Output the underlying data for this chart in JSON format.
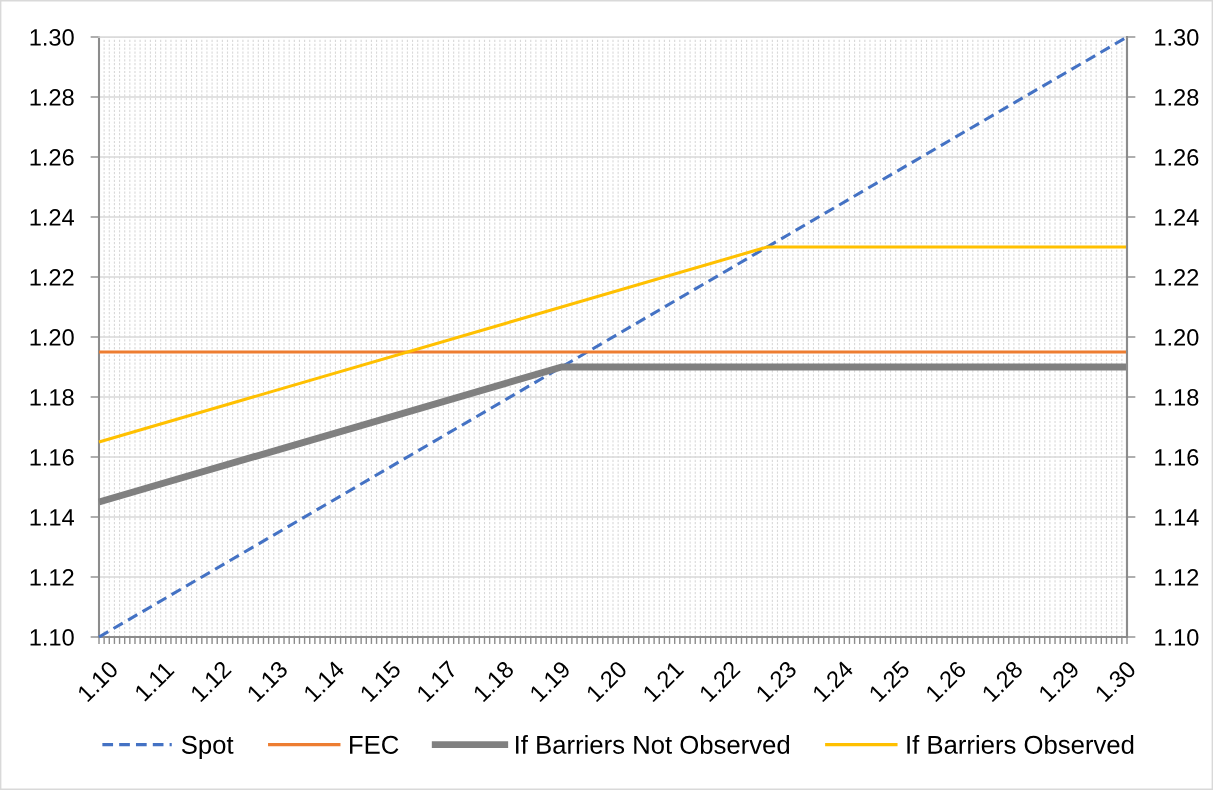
{
  "chart_data": {
    "type": "line",
    "xlim": [
      1.1,
      1.3
    ],
    "xticks": [
      {
        "value": 1.1,
        "label": "1.10"
      },
      {
        "value": 1.101,
        "label": null
      },
      {
        "value": 1.102,
        "label": null
      },
      {
        "value": 1.103,
        "label": null
      },
      {
        "value": 1.104,
        "label": null
      },
      {
        "value": 1.105,
        "label": null
      },
      {
        "value": 1.106,
        "label": null
      },
      {
        "value": 1.107,
        "label": null
      },
      {
        "value": 1.108,
        "label": null
      },
      {
        "value": 1.109,
        "label": null
      },
      {
        "value": 1.11,
        "label": null
      },
      {
        "value": 1.111,
        "label": "1.11"
      },
      {
        "value": 1.112,
        "label": null
      },
      {
        "value": 1.113,
        "label": null
      },
      {
        "value": 1.114,
        "label": null
      },
      {
        "value": 1.115,
        "label": null
      },
      {
        "value": 1.116,
        "label": null
      },
      {
        "value": 1.117,
        "label": null
      },
      {
        "value": 1.118,
        "label": null
      },
      {
        "value": 1.119,
        "label": null
      },
      {
        "value": 1.12,
        "label": null
      },
      {
        "value": 1.121,
        "label": null
      },
      {
        "value": 1.122,
        "label": "1.12"
      },
      {
        "value": 1.123,
        "label": null
      },
      {
        "value": 1.124,
        "label": null
      },
      {
        "value": 1.125,
        "label": null
      },
      {
        "value": 1.126,
        "label": null
      },
      {
        "value": 1.127,
        "label": null
      },
      {
        "value": 1.128,
        "label": null
      },
      {
        "value": 1.129,
        "label": null
      },
      {
        "value": 1.13,
        "label": null
      },
      {
        "value": 1.131,
        "label": null
      },
      {
        "value": 1.132,
        "label": null
      },
      {
        "value": 1.133,
        "label": "1.13"
      },
      {
        "value": 1.134,
        "label": null
      },
      {
        "value": 1.135,
        "label": null
      },
      {
        "value": 1.136,
        "label": null
      },
      {
        "value": 1.137,
        "label": null
      },
      {
        "value": 1.138,
        "label": null
      },
      {
        "value": 1.139,
        "label": null
      },
      {
        "value": 1.14,
        "label": null
      },
      {
        "value": 1.141,
        "label": null
      },
      {
        "value": 1.142,
        "label": null
      },
      {
        "value": 1.143,
        "label": null
      },
      {
        "value": 1.144,
        "label": "1.14"
      },
      {
        "value": 1.145,
        "label": null
      },
      {
        "value": 1.146,
        "label": null
      },
      {
        "value": 1.147,
        "label": null
      },
      {
        "value": 1.148,
        "label": null
      },
      {
        "value": 1.149,
        "label": null
      },
      {
        "value": 1.15,
        "label": null
      },
      {
        "value": 1.151,
        "label": null
      },
      {
        "value": 1.152,
        "label": null
      },
      {
        "value": 1.153,
        "label": null
      },
      {
        "value": 1.154,
        "label": null
      },
      {
        "value": 1.155,
        "label": "1.15"
      },
      {
        "value": 1.156,
        "label": null
      },
      {
        "value": 1.157,
        "label": null
      },
      {
        "value": 1.158,
        "label": null
      },
      {
        "value": 1.159,
        "label": null
      },
      {
        "value": 1.16,
        "label": null
      },
      {
        "value": 1.161,
        "label": null
      },
      {
        "value": 1.162,
        "label": null
      },
      {
        "value": 1.163,
        "label": null
      },
      {
        "value": 1.164,
        "label": null
      },
      {
        "value": 1.165,
        "label": null
      },
      {
        "value": 1.166,
        "label": "1.17"
      },
      {
        "value": 1.167,
        "label": null
      },
      {
        "value": 1.168,
        "label": null
      },
      {
        "value": 1.169,
        "label": null
      },
      {
        "value": 1.17,
        "label": null
      },
      {
        "value": 1.171,
        "label": null
      },
      {
        "value": 1.172,
        "label": null
      },
      {
        "value": 1.173,
        "label": null
      },
      {
        "value": 1.174,
        "label": null
      },
      {
        "value": 1.175,
        "label": null
      },
      {
        "value": 1.176,
        "label": null
      },
      {
        "value": 1.177,
        "label": "1.18"
      },
      {
        "value": 1.178,
        "label": null
      },
      {
        "value": 1.179,
        "label": null
      },
      {
        "value": 1.18,
        "label": null
      },
      {
        "value": 1.181,
        "label": null
      },
      {
        "value": 1.182,
        "label": null
      },
      {
        "value": 1.183,
        "label": null
      },
      {
        "value": 1.184,
        "label": null
      },
      {
        "value": 1.185,
        "label": null
      },
      {
        "value": 1.186,
        "label": null
      },
      {
        "value": 1.187,
        "label": null
      },
      {
        "value": 1.188,
        "label": "1.19"
      },
      {
        "value": 1.189,
        "label": null
      },
      {
        "value": 1.19,
        "label": null
      },
      {
        "value": 1.191,
        "label": null
      },
      {
        "value": 1.192,
        "label": null
      },
      {
        "value": 1.193,
        "label": null
      },
      {
        "value": 1.194,
        "label": null
      },
      {
        "value": 1.195,
        "label": null
      },
      {
        "value": 1.196,
        "label": null
      },
      {
        "value": 1.197,
        "label": null
      },
      {
        "value": 1.198,
        "label": null
      },
      {
        "value": 1.199,
        "label": "1.20"
      },
      {
        "value": 1.2,
        "label": null
      },
      {
        "value": 1.201,
        "label": null
      },
      {
        "value": 1.202,
        "label": null
      },
      {
        "value": 1.203,
        "label": null
      },
      {
        "value": 1.204,
        "label": null
      },
      {
        "value": 1.205,
        "label": null
      },
      {
        "value": 1.206,
        "label": null
      },
      {
        "value": 1.207,
        "label": null
      },
      {
        "value": 1.208,
        "label": null
      },
      {
        "value": 1.209,
        "label": null
      },
      {
        "value": 1.21,
        "label": "1.21"
      },
      {
        "value": 1.211,
        "label": null
      },
      {
        "value": 1.212,
        "label": null
      },
      {
        "value": 1.213,
        "label": null
      },
      {
        "value": 1.214,
        "label": null
      },
      {
        "value": 1.215,
        "label": null
      },
      {
        "value": 1.216,
        "label": null
      },
      {
        "value": 1.217,
        "label": null
      },
      {
        "value": 1.218,
        "label": null
      },
      {
        "value": 1.219,
        "label": null
      },
      {
        "value": 1.22,
        "label": null
      },
      {
        "value": 1.221,
        "label": "1.22"
      },
      {
        "value": 1.222,
        "label": null
      },
      {
        "value": 1.223,
        "label": null
      },
      {
        "value": 1.224,
        "label": null
      },
      {
        "value": 1.225,
        "label": null
      },
      {
        "value": 1.226,
        "label": null
      },
      {
        "value": 1.227,
        "label": null
      },
      {
        "value": 1.228,
        "label": null
      },
      {
        "value": 1.229,
        "label": null
      },
      {
        "value": 1.23,
        "label": null
      },
      {
        "value": 1.231,
        "label": null
      },
      {
        "value": 1.232,
        "label": "1.23"
      },
      {
        "value": 1.233,
        "label": null
      },
      {
        "value": 1.234,
        "label": null
      },
      {
        "value": 1.235,
        "label": null
      },
      {
        "value": 1.236,
        "label": null
      },
      {
        "value": 1.237,
        "label": null
      },
      {
        "value": 1.238,
        "label": null
      },
      {
        "value": 1.239,
        "label": null
      },
      {
        "value": 1.24,
        "label": null
      },
      {
        "value": 1.241,
        "label": null
      },
      {
        "value": 1.242,
        "label": null
      },
      {
        "value": 1.243,
        "label": "1.24"
      },
      {
        "value": 1.244,
        "label": null
      },
      {
        "value": 1.245,
        "label": null
      },
      {
        "value": 1.246,
        "label": null
      },
      {
        "value": 1.247,
        "label": null
      },
      {
        "value": 1.248,
        "label": null
      },
      {
        "value": 1.249,
        "label": null
      },
      {
        "value": 1.25,
        "label": null
      },
      {
        "value": 1.251,
        "label": null
      },
      {
        "value": 1.252,
        "label": null
      },
      {
        "value": 1.253,
        "label": null
      },
      {
        "value": 1.254,
        "label": "1.25"
      },
      {
        "value": 1.255,
        "label": null
      },
      {
        "value": 1.256,
        "label": null
      },
      {
        "value": 1.257,
        "label": null
      },
      {
        "value": 1.258,
        "label": null
      },
      {
        "value": 1.259,
        "label": null
      },
      {
        "value": 1.26,
        "label": null
      },
      {
        "value": 1.261,
        "label": null
      },
      {
        "value": 1.262,
        "label": null
      },
      {
        "value": 1.263,
        "label": null
      },
      {
        "value": 1.264,
        "label": null
      },
      {
        "value": 1.265,
        "label": "1.26"
      },
      {
        "value": 1.266,
        "label": null
      },
      {
        "value": 1.267,
        "label": null
      },
      {
        "value": 1.268,
        "label": null
      },
      {
        "value": 1.269,
        "label": null
      },
      {
        "value": 1.27,
        "label": null
      },
      {
        "value": 1.271,
        "label": null
      },
      {
        "value": 1.272,
        "label": null
      },
      {
        "value": 1.273,
        "label": null
      },
      {
        "value": 1.274,
        "label": null
      },
      {
        "value": 1.275,
        "label": null
      },
      {
        "value": 1.276,
        "label": "1.28"
      },
      {
        "value": 1.277,
        "label": null
      },
      {
        "value": 1.278,
        "label": null
      },
      {
        "value": 1.279,
        "label": null
      },
      {
        "value": 1.28,
        "label": null
      },
      {
        "value": 1.281,
        "label": null
      },
      {
        "value": 1.282,
        "label": null
      },
      {
        "value": 1.283,
        "label": null
      },
      {
        "value": 1.284,
        "label": null
      },
      {
        "value": 1.285,
        "label": null
      },
      {
        "value": 1.286,
        "label": null
      },
      {
        "value": 1.287,
        "label": "1.29"
      },
      {
        "value": 1.288,
        "label": null
      },
      {
        "value": 1.289,
        "label": null
      },
      {
        "value": 1.29,
        "label": null
      },
      {
        "value": 1.291,
        "label": null
      },
      {
        "value": 1.292,
        "label": null
      },
      {
        "value": 1.293,
        "label": null
      },
      {
        "value": 1.294,
        "label": null
      },
      {
        "value": 1.295,
        "label": null
      },
      {
        "value": 1.296,
        "label": null
      },
      {
        "value": 1.297,
        "label": null
      },
      {
        "value": 1.298,
        "label": "1.30"
      },
      {
        "value": 1.299,
        "label": null
      },
      {
        "value": 1.3,
        "label": null
      }
    ],
    "ylim": [
      1.1,
      1.3
    ],
    "yticks": [
      {
        "value": 1.1,
        "label": "1.10"
      },
      1.12,
      1.14,
      1.16,
      1.18,
      {
        "value": 1.2,
        "label": "1.20"
      },
      1.22,
      1.24,
      1.26,
      1.28,
      {
        "value": 1.3,
        "label": "1.30"
      }
    ],
    "y2lim": [
      1.1,
      1.3
    ],
    "y2ticks": [
      {
        "value": 1.1,
        "label": "1.10"
      },
      1.12,
      1.14,
      1.16,
      1.18,
      {
        "value": 1.2,
        "label": "1.20"
      },
      1.22,
      1.24,
      1.26,
      1.28,
      {
        "value": 1.3,
        "label": "1.30"
      }
    ],
    "grid": true,
    "legend": "bottom",
    "series": [
      {
        "name": "Spot",
        "color": "#4472c4",
        "line_style": "dashed",
        "x": [
          1.1,
          1.3
        ],
        "values": [
          1.1,
          1.3
        ]
      },
      {
        "name": "FEC",
        "color": "#ed7d31",
        "line_style": "solid",
        "x": [
          1.1,
          1.3
        ],
        "values": [
          1.195,
          1.195
        ]
      },
      {
        "name": "If Barriers Not Observed",
        "color": "#808080",
        "line_style": "solid",
        "x": [
          1.1,
          1.19,
          1.3
        ],
        "values": [
          1.145,
          1.19,
          1.19
        ]
      },
      {
        "name": "If Barriers Observed",
        "color": "#ffc000",
        "line_style": "solid",
        "x": [
          1.1,
          1.23,
          1.3
        ],
        "values": [
          1.165,
          1.23,
          1.23
        ]
      }
    ]
  }
}
